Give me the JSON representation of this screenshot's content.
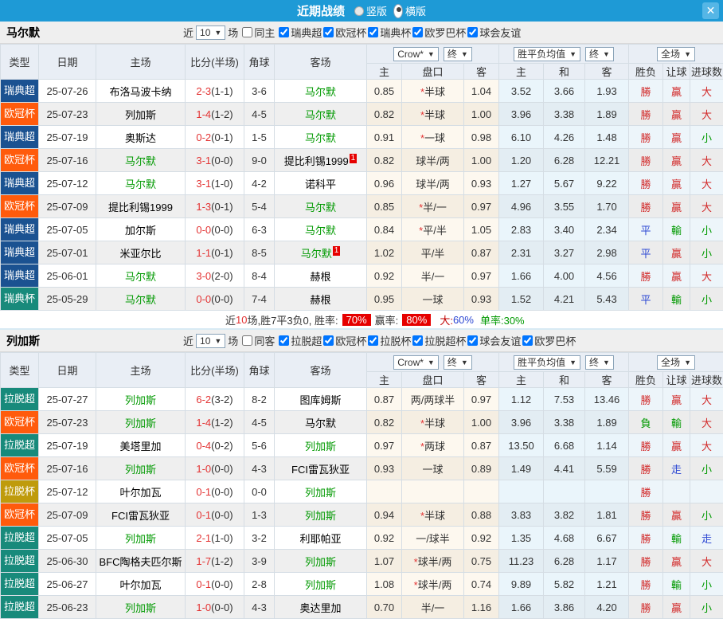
{
  "titlebar": {
    "title": "近期战绩",
    "vertical_label": "竖版",
    "horizontal_label": "横版",
    "close_glyph": "✕"
  },
  "header": {
    "type": "类型",
    "date": "日期",
    "home": "主场",
    "score": "比分(半场)",
    "corner": "角球",
    "away": "客场",
    "h_home": "主",
    "h_handicap": "盘口",
    "h_away": "客",
    "a_home": "主",
    "a_draw": "和",
    "a_away": "客",
    "r_result": "胜负",
    "r_handicap": "让球",
    "r_goals": "进球数",
    "bookmaker": "Crow*",
    "final": "终",
    "avg": "胜平负均值",
    "scope": "全场",
    "caret": "▼",
    "star_glyph": "*"
  },
  "colors": {
    "titlebar_bg": "#1e9ad6",
    "badge_red": "#e60000",
    "win_red": "#d22a2a",
    "lose_green": "#009900",
    "draw_blue": "#2d48d3",
    "score_red": "#e33333",
    "focus_team_green": "#009900",
    "league_colors": {
      "瑞典超": "#1b5291",
      "欧冠杯": "#ff5b0c",
      "瑞典杯": "#188a7b",
      "拉脱超": "#188a7b",
      "拉脱杯": "#bf9b0c"
    },
    "result_colors": {
      "勝": "rr",
      "贏": "rr",
      "大": "rr",
      "負": "rg",
      "輸": "rg",
      "小": "rg",
      "平": "rb",
      "走": "rb"
    }
  },
  "sections": [
    {
      "team": "马尔默",
      "filter": {
        "near": "近",
        "count": "10",
        "matches": "场",
        "same": "同主",
        "same_checked": false,
        "leagues": [
          "瑞典超",
          "欧冠杯",
          "瑞典杯",
          "欧罗巴杯",
          "球会友谊"
        ]
      },
      "rows": [
        {
          "lg": "瑞典超",
          "date": "25-07-26",
          "home": "布洛马波卡纳",
          "hf": false,
          "hsup": "",
          "score": "2-3",
          "half": "(1-1)",
          "cor": "3-6",
          "away": "马尔默",
          "af": true,
          "asup": "",
          "o1": "0.85",
          "star": true,
          "hc": "半球",
          "o2": "1.04",
          "m1": "3.52",
          "m2": "3.66",
          "m3": "1.93",
          "r1": "勝",
          "r2": "贏",
          "r3": "大"
        },
        {
          "lg": "欧冠杯",
          "date": "25-07-23",
          "home": "列加斯",
          "hf": false,
          "hsup": "",
          "score": "1-4",
          "half": "(1-2)",
          "cor": "4-5",
          "away": "马尔默",
          "af": true,
          "asup": "",
          "o1": "0.82",
          "star": true,
          "hc": "半球",
          "o2": "1.00",
          "m1": "3.96",
          "m2": "3.38",
          "m3": "1.89",
          "r1": "勝",
          "r2": "贏",
          "r3": "大"
        },
        {
          "lg": "瑞典超",
          "date": "25-07-19",
          "home": "奥斯达",
          "hf": false,
          "hsup": "",
          "score": "0-2",
          "half": "(0-1)",
          "cor": "1-5",
          "away": "马尔默",
          "af": true,
          "asup": "",
          "o1": "0.91",
          "star": true,
          "hc": "一球",
          "o2": "0.98",
          "m1": "6.10",
          "m2": "4.26",
          "m3": "1.48",
          "r1": "勝",
          "r2": "贏",
          "r3": "小"
        },
        {
          "lg": "欧冠杯",
          "date": "25-07-16",
          "home": "马尔默",
          "hf": true,
          "hsup": "",
          "score": "3-1",
          "half": "(0-0)",
          "cor": "9-0",
          "away": "提比利锡1999",
          "af": false,
          "asup": "1",
          "o1": "0.82",
          "star": false,
          "hc": "球半/两",
          "o2": "1.00",
          "m1": "1.20",
          "m2": "6.28",
          "m3": "12.21",
          "r1": "勝",
          "r2": "贏",
          "r3": "大"
        },
        {
          "lg": "瑞典超",
          "date": "25-07-12",
          "home": "马尔默",
          "hf": true,
          "hsup": "",
          "score": "3-1",
          "half": "(1-0)",
          "cor": "4-2",
          "away": "诺科平",
          "af": false,
          "asup": "",
          "o1": "0.96",
          "star": false,
          "hc": "球半/两",
          "o2": "0.93",
          "m1": "1.27",
          "m2": "5.67",
          "m3": "9.22",
          "r1": "勝",
          "r2": "贏",
          "r3": "大"
        },
        {
          "lg": "欧冠杯",
          "date": "25-07-09",
          "home": "提比利锡1999",
          "hf": false,
          "hsup": "",
          "score": "1-3",
          "half": "(0-1)",
          "cor": "5-4",
          "away": "马尔默",
          "af": true,
          "asup": "",
          "o1": "0.85",
          "star": true,
          "hc": "半/一",
          "o2": "0.97",
          "m1": "4.96",
          "m2": "3.55",
          "m3": "1.70",
          "r1": "勝",
          "r2": "贏",
          "r3": "大"
        },
        {
          "lg": "瑞典超",
          "date": "25-07-05",
          "home": "加尔斯",
          "hf": false,
          "hsup": "",
          "score": "0-0",
          "half": "(0-0)",
          "cor": "6-3",
          "away": "马尔默",
          "af": true,
          "asup": "",
          "o1": "0.84",
          "star": true,
          "hc": "平/半",
          "o2": "1.05",
          "m1": "2.83",
          "m2": "3.40",
          "m3": "2.34",
          "r1": "平",
          "r2": "輸",
          "r3": "小"
        },
        {
          "lg": "瑞典超",
          "date": "25-07-01",
          "home": "米亚尔比",
          "hf": false,
          "hsup": "",
          "score": "1-1",
          "half": "(0-1)",
          "cor": "8-5",
          "away": "马尔默",
          "af": true,
          "asup": "1",
          "o1": "1.02",
          "star": false,
          "hc": "平/半",
          "o2": "0.87",
          "m1": "2.31",
          "m2": "3.27",
          "m3": "2.98",
          "r1": "平",
          "r2": "贏",
          "r3": "小"
        },
        {
          "lg": "瑞典超",
          "date": "25-06-01",
          "home": "马尔默",
          "hf": true,
          "hsup": "",
          "score": "3-0",
          "half": "(2-0)",
          "cor": "8-4",
          "away": "赫根",
          "af": false,
          "asup": "",
          "o1": "0.92",
          "star": false,
          "hc": "半/一",
          "o2": "0.97",
          "m1": "1.66",
          "m2": "4.00",
          "m3": "4.56",
          "r1": "勝",
          "r2": "贏",
          "r3": "大"
        },
        {
          "lg": "瑞典杯",
          "date": "25-05-29",
          "home": "马尔默",
          "hf": true,
          "hsup": "",
          "score": "0-0",
          "half": "(0-0)",
          "cor": "7-4",
          "away": "赫根",
          "af": false,
          "asup": "",
          "o1": "0.95",
          "star": false,
          "hc": "一球",
          "o2": "0.93",
          "m1": "1.52",
          "m2": "4.21",
          "m3": "5.43",
          "r1": "平",
          "r2": "輸",
          "r3": "小"
        }
      ],
      "summary": {
        "prefix": "近",
        "count": "10",
        "after_count": "场,胜7平3负0, 胜率:",
        "win_rate": "70%",
        "profit_label": "赢率:",
        "profit_rate": "80%",
        "big_label": "大:",
        "big_value": "60%",
        "single_label": "单率:",
        "single_value": "30%"
      }
    },
    {
      "team": "列加斯",
      "filter": {
        "near": "近",
        "count": "10",
        "matches": "场",
        "same": "同客",
        "same_checked": false,
        "leagues": [
          "拉脱超",
          "欧冠杯",
          "拉脱杯",
          "拉脱超杯",
          "球会友谊",
          "欧罗巴杯"
        ]
      },
      "rows": [
        {
          "lg": "拉脱超",
          "date": "25-07-27",
          "home": "列加斯",
          "hf": true,
          "hsup": "",
          "score": "6-2",
          "half": "(3-2)",
          "cor": "8-2",
          "away": "图库姆斯",
          "af": false,
          "asup": "",
          "o1": "0.87",
          "star": false,
          "hc": "两/两球半",
          "o2": "0.97",
          "m1": "1.12",
          "m2": "7.53",
          "m3": "13.46",
          "r1": "勝",
          "r2": "贏",
          "r3": "大"
        },
        {
          "lg": "欧冠杯",
          "date": "25-07-23",
          "home": "列加斯",
          "hf": true,
          "hsup": "",
          "score": "1-4",
          "half": "(1-2)",
          "cor": "4-5",
          "away": "马尔默",
          "af": false,
          "asup": "",
          "o1": "0.82",
          "star": true,
          "hc": "半球",
          "o2": "1.00",
          "m1": "3.96",
          "m2": "3.38",
          "m3": "1.89",
          "r1": "負",
          "r2": "輸",
          "r3": "大"
        },
        {
          "lg": "拉脱超",
          "date": "25-07-19",
          "home": "美塔里加",
          "hf": false,
          "hsup": "",
          "score": "0-4",
          "half": "(0-2)",
          "cor": "5-6",
          "away": "列加斯",
          "af": true,
          "asup": "",
          "o1": "0.97",
          "star": true,
          "hc": "两球",
          "o2": "0.87",
          "m1": "13.50",
          "m2": "6.68",
          "m3": "1.14",
          "r1": "勝",
          "r2": "贏",
          "r3": "大"
        },
        {
          "lg": "欧冠杯",
          "date": "25-07-16",
          "home": "列加斯",
          "hf": true,
          "hsup": "",
          "score": "1-0",
          "half": "(0-0)",
          "cor": "4-3",
          "away": "FCI雷瓦狄亚",
          "af": false,
          "asup": "",
          "o1": "0.93",
          "star": false,
          "hc": "一球",
          "o2": "0.89",
          "m1": "1.49",
          "m2": "4.41",
          "m3": "5.59",
          "r1": "勝",
          "r2": "走",
          "r3": "小"
        },
        {
          "lg": "拉脱杯",
          "date": "25-07-12",
          "home": "叶尔加瓦",
          "hf": false,
          "hsup": "",
          "score": "0-1",
          "half": "(0-0)",
          "cor": "0-0",
          "away": "列加斯",
          "af": true,
          "asup": "",
          "o1": "",
          "star": false,
          "hc": "",
          "o2": "",
          "m1": "",
          "m2": "",
          "m3": "",
          "r1": "勝",
          "r2": "",
          "r3": ""
        },
        {
          "lg": "欧冠杯",
          "date": "25-07-09",
          "home": "FCI雷瓦狄亚",
          "hf": false,
          "hsup": "",
          "score": "0-1",
          "half": "(0-0)",
          "cor": "1-3",
          "away": "列加斯",
          "af": true,
          "asup": "",
          "o1": "0.94",
          "star": true,
          "hc": "半球",
          "o2": "0.88",
          "m1": "3.83",
          "m2": "3.82",
          "m3": "1.81",
          "r1": "勝",
          "r2": "贏",
          "r3": "小"
        },
        {
          "lg": "拉脱超",
          "date": "25-07-05",
          "home": "列加斯",
          "hf": true,
          "hsup": "",
          "score": "2-1",
          "half": "(1-0)",
          "cor": "3-2",
          "away": "利耶帕亚",
          "af": false,
          "asup": "",
          "o1": "0.92",
          "star": false,
          "hc": "一/球半",
          "o2": "0.92",
          "m1": "1.35",
          "m2": "4.68",
          "m3": "6.67",
          "r1": "勝",
          "r2": "輸",
          "r3": "走"
        },
        {
          "lg": "拉脱超",
          "date": "25-06-30",
          "home": "BFC陶格夫匹尔斯",
          "hf": false,
          "hsup": "",
          "score": "1-7",
          "half": "(1-2)",
          "cor": "3-9",
          "away": "列加斯",
          "af": true,
          "asup": "",
          "o1": "1.07",
          "star": true,
          "hc": "球半/两",
          "o2": "0.75",
          "m1": "11.23",
          "m2": "6.28",
          "m3": "1.17",
          "r1": "勝",
          "r2": "贏",
          "r3": "大"
        },
        {
          "lg": "拉脱超",
          "date": "25-06-27",
          "home": "叶尔加瓦",
          "hf": false,
          "hsup": "",
          "score": "0-1",
          "half": "(0-0)",
          "cor": "2-8",
          "away": "列加斯",
          "af": true,
          "asup": "",
          "o1": "1.08",
          "star": true,
          "hc": "球半/两",
          "o2": "0.74",
          "m1": "9.89",
          "m2": "5.82",
          "m3": "1.21",
          "r1": "勝",
          "r2": "輸",
          "r3": "小"
        },
        {
          "lg": "拉脱超",
          "date": "25-06-23",
          "home": "列加斯",
          "hf": true,
          "hsup": "",
          "score": "1-0",
          "half": "(0-0)",
          "cor": "4-3",
          "away": "奥达里加",
          "af": false,
          "asup": "",
          "o1": "0.70",
          "star": false,
          "hc": "半/一",
          "o2": "1.16",
          "m1": "1.66",
          "m2": "3.86",
          "m3": "4.20",
          "r1": "勝",
          "r2": "贏",
          "r3": "小"
        }
      ],
      "summary": null
    }
  ]
}
